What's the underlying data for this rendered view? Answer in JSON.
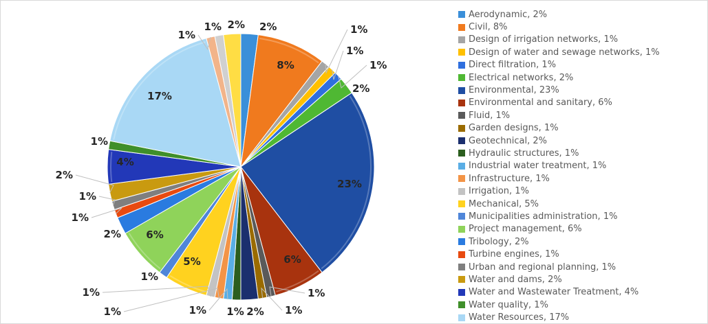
{
  "chart_data": {
    "type": "pie",
    "legend_position": "right",
    "slices": [
      {
        "label": "Aerodynamic",
        "value": 2,
        "display": "2%",
        "legend": "Aerodynamic, 2%",
        "color": "#3a8fd9"
      },
      {
        "label": "Civil",
        "value": 8,
        "display": "8%",
        "legend": "Civil, 8%",
        "color": "#f07a1e"
      },
      {
        "label": "Design of irrigation networks",
        "value": 1,
        "display": "1%",
        "legend": "Design of irrigation networks, 1%",
        "color": "#a5a5a5"
      },
      {
        "label": "Design of water and sewage networks",
        "value": 1,
        "display": "1%",
        "legend": "Design of water and sewage networks, 1%",
        "color": "#ffc000"
      },
      {
        "label": "Direct filtration",
        "value": 1,
        "display": "1%",
        "legend": "Direct filtration, 1%",
        "color": "#2f6fde"
      },
      {
        "label": "Electrical networks",
        "value": 2,
        "display": "2%",
        "legend": "Electrical networks, 2%",
        "color": "#4fb833"
      },
      {
        "label": "Environmental",
        "value": 23,
        "display": "23%",
        "legend": "Environmental, 23%",
        "color": "#1f4ea3"
      },
      {
        "label": "Environmental and sanitary",
        "value": 6,
        "display": "6%",
        "legend": "Environmental and sanitary, 6%",
        "color": "#a8330e"
      },
      {
        "label": "Fluid",
        "value": 1,
        "display": "1%",
        "legend": "Fluid, 1%",
        "color": "#5a5a5a"
      },
      {
        "label": "Garden designs",
        "value": 1,
        "display": "1%",
        "legend": "Garden designs, 1%",
        "color": "#9a6b00"
      },
      {
        "label": "Geotechnical",
        "value": 2,
        "display": "2%",
        "legend": "Geotechnical, 2%",
        "color": "#1b2f6e"
      },
      {
        "label": "Hydraulic structures",
        "value": 1,
        "display": "1%",
        "legend": "Hydraulic structures, 1%",
        "color": "#2b5e1e"
      },
      {
        "label": "Industrial water treatment",
        "value": 1,
        "display": "1%",
        "legend": "Industrial water treatment, 1%",
        "color": "#5aaee5"
      },
      {
        "label": "Infrastructure",
        "value": 1,
        "display": "1%",
        "legend": "Infrastructure, 1%",
        "color": "#f39446"
      },
      {
        "label": "Irrigation",
        "value": 1,
        "display": "1%",
        "legend": "Irrigation, 1%",
        "color": "#c3c3c3"
      },
      {
        "label": "Mechanical",
        "value": 5,
        "display": "5%",
        "legend": "Mechanical, 5%",
        "color": "#ffd21f"
      },
      {
        "label": "Municipalities administration",
        "value": 1,
        "display": "1%",
        "legend": "Municipalities administration, 1%",
        "color": "#4f86d9"
      },
      {
        "label": "Project management",
        "value": 6,
        "display": "6%",
        "legend": "Project management, 6%",
        "color": "#8fd35a"
      },
      {
        "label": "Tribology",
        "value": 2,
        "display": "2%",
        "legend": "Tribology, 2%",
        "color": "#2a7be0"
      },
      {
        "label": "Turbine engines",
        "value": 1,
        "display": "1%",
        "legend": "Turbine engines, 1%",
        "color": "#e84a10"
      },
      {
        "label": "Urban and regional planning",
        "value": 1,
        "display": "1%",
        "legend": "Urban and regional planning, 1%",
        "color": "#7f7f7f"
      },
      {
        "label": "Water and dams",
        "value": 2,
        "display": "2%",
        "legend": "Water and dams, 2%",
        "color": "#c99a10"
      },
      {
        "label": "Water and Wastewater Treatment",
        "value": 4,
        "display": "4%",
        "legend": "Water and Wastewater Treatment, 4%",
        "color": "#2238b8"
      },
      {
        "label": "Water quality",
        "value": 1,
        "display": "1%",
        "legend": "Water quality, 1%",
        "color": "#3f8f2a"
      },
      {
        "label": "Water Resources",
        "value": 17,
        "display": "17%",
        "legend": "Water Resources, 17%",
        "color": "#a9d8f5"
      },
      {
        "label": "",
        "value": 1,
        "display": "1%",
        "legend": "",
        "color": "#f2b48a"
      },
      {
        "label": "",
        "value": 1,
        "display": "1%",
        "legend": "",
        "color": "#d0d0d0"
      },
      {
        "label": "",
        "value": 2,
        "display": "2%",
        "legend": "",
        "color": "#ffdd44"
      }
    ]
  }
}
